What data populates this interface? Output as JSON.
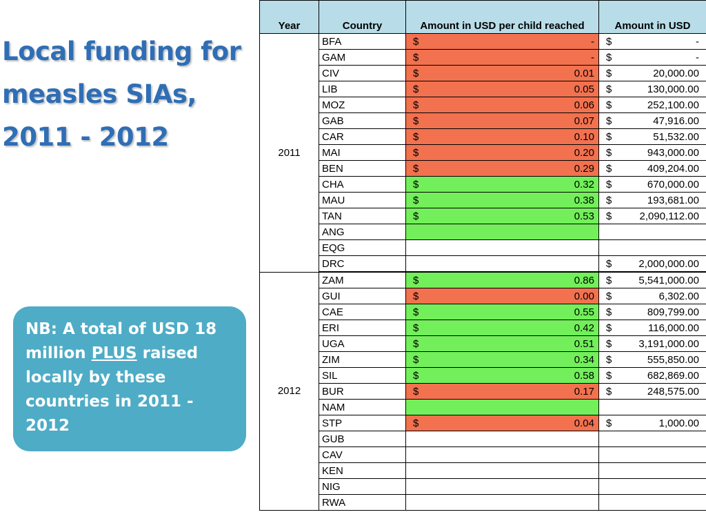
{
  "title": {
    "lines": [
      "Local funding for",
      "measles SIAs,",
      "2011 - 2012"
    ]
  },
  "note": {
    "text_before": "NB: A total of USD 18 million ",
    "underlined": "PLUS",
    "text_after": " raised locally by these countries in 2011 - 2012",
    "color": "#4eacc6"
  },
  "table": {
    "headers": {
      "year": "Year",
      "country": "Country",
      "per_child": "Amount in USD per child reached",
      "amount": "Amount in USD"
    },
    "colors": {
      "header": "#b8dde9",
      "red": "#f2714f",
      "green": "#72ef5a"
    },
    "groups": [
      {
        "year": "2011",
        "rows": [
          {
            "country": "BFA",
            "rate_cur": "$",
            "rate": "-",
            "fill": "red",
            "amt_cur": "$",
            "amount": "-"
          },
          {
            "country": "GAM",
            "rate_cur": "$",
            "rate": "-",
            "fill": "red",
            "amt_cur": "$",
            "amount": "-"
          },
          {
            "country": "CIV",
            "rate_cur": "$",
            "rate": "0.01",
            "fill": "red",
            "amt_cur": "$",
            "amount": "20,000.00"
          },
          {
            "country": "LIB",
            "rate_cur": "$",
            "rate": "0.05",
            "fill": "red",
            "amt_cur": "$",
            "amount": "130,000.00"
          },
          {
            "country": "MOZ",
            "rate_cur": "$",
            "rate": "0.06",
            "fill": "red",
            "amt_cur": "$",
            "amount": "252,100.00"
          },
          {
            "country": "GAB",
            "rate_cur": "$",
            "rate": "0.07",
            "fill": "red",
            "amt_cur": "$",
            "amount": "47,916.00"
          },
          {
            "country": "CAR",
            "rate_cur": "$",
            "rate": "0.10",
            "fill": "red",
            "amt_cur": "$",
            "amount": "51,532.00"
          },
          {
            "country": "MAI",
            "rate_cur": "$",
            "rate": "0.20",
            "fill": "red",
            "amt_cur": "$",
            "amount": "943,000.00"
          },
          {
            "country": "BEN",
            "rate_cur": "$",
            "rate": "0.29",
            "fill": "red",
            "amt_cur": "$",
            "amount": "409,204.00"
          },
          {
            "country": "CHA",
            "rate_cur": "$",
            "rate": "0.32",
            "fill": "green",
            "amt_cur": "$",
            "amount": "670,000.00"
          },
          {
            "country": "MAU",
            "rate_cur": "$",
            "rate": "0.38",
            "fill": "green",
            "amt_cur": "$",
            "amount": "193,681.00"
          },
          {
            "country": "TAN",
            "rate_cur": "$",
            "rate": "0.53",
            "fill": "green",
            "amt_cur": "$",
            "amount": "2,090,112.00"
          },
          {
            "country": "ANG",
            "rate_cur": "",
            "rate": "",
            "fill": "green",
            "amt_cur": "",
            "amount": ""
          },
          {
            "country": "EQG",
            "rate_cur": "",
            "rate": "",
            "fill": "",
            "amt_cur": "",
            "amount": ""
          },
          {
            "country": "DRC",
            "rate_cur": "",
            "rate": "",
            "fill": "",
            "amt_cur": "$",
            "amount": "2,000,000.00"
          }
        ]
      },
      {
        "year": "2012",
        "rows": [
          {
            "country": "ZAM",
            "rate_cur": "$",
            "rate": "0.86",
            "fill": "green",
            "amt_cur": "$",
            "amount": "5,541,000.00"
          },
          {
            "country": "GUI",
            "rate_cur": "$",
            "rate": "0.00",
            "fill": "red",
            "amt_cur": "$",
            "amount": "6,302.00"
          },
          {
            "country": "CAE",
            "rate_cur": "$",
            "rate": "0.55",
            "fill": "green",
            "amt_cur": "$",
            "amount": "809,799.00"
          },
          {
            "country": "ERI",
            "rate_cur": "$",
            "rate": "0.42",
            "fill": "green",
            "amt_cur": "$",
            "amount": "116,000.00"
          },
          {
            "country": "UGA",
            "rate_cur": "$",
            "rate": "0.51",
            "fill": "green",
            "amt_cur": "$",
            "amount": "3,191,000.00"
          },
          {
            "country": "ZIM",
            "rate_cur": "$",
            "rate": "0.34",
            "fill": "green",
            "amt_cur": "$",
            "amount": "555,850.00"
          },
          {
            "country": "SIL",
            "rate_cur": "$",
            "rate": "0.58",
            "fill": "green",
            "amt_cur": "$",
            "amount": "682,869.00"
          },
          {
            "country": "BUR",
            "rate_cur": "$",
            "rate": "0.17",
            "fill": "red",
            "amt_cur": "$",
            "amount": "248,575.00"
          },
          {
            "country": "NAM",
            "rate_cur": "",
            "rate": "",
            "fill": "green",
            "amt_cur": "",
            "amount": ""
          },
          {
            "country": "STP",
            "rate_cur": "$",
            "rate": "0.04",
            "fill": "red",
            "amt_cur": "$",
            "amount": "1,000.00"
          },
          {
            "country": "GUB",
            "rate_cur": "",
            "rate": "",
            "fill": "",
            "amt_cur": "",
            "amount": ""
          },
          {
            "country": "CAV",
            "rate_cur": "",
            "rate": "",
            "fill": "",
            "amt_cur": "",
            "amount": ""
          },
          {
            "country": "KEN",
            "rate_cur": "",
            "rate": "",
            "fill": "",
            "amt_cur": "",
            "amount": ""
          },
          {
            "country": "NIG",
            "rate_cur": "",
            "rate": "",
            "fill": "",
            "amt_cur": "",
            "amount": ""
          },
          {
            "country": "RWA",
            "rate_cur": "",
            "rate": "",
            "fill": "",
            "amt_cur": "",
            "amount": ""
          }
        ]
      }
    ]
  }
}
